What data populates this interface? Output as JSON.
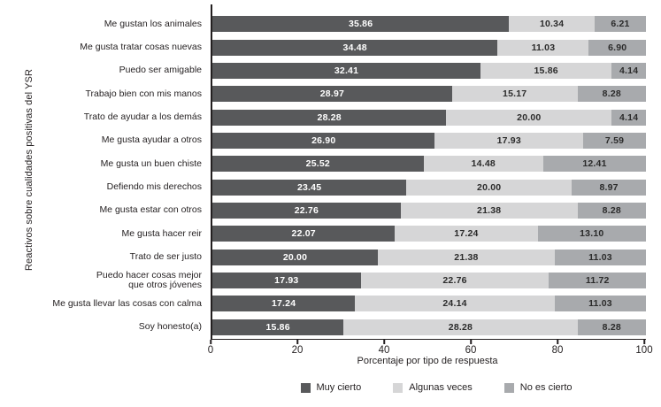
{
  "figure": {
    "y_axis_title": "Reactivos sobre cualidades positivas del YSR",
    "x_axis_title": "Porcentaje por tipo de respuesta"
  },
  "chart_data": {
    "type": "bar",
    "variant": "horizontal-stacked-normalized",
    "title": "",
    "ylabel": "Reactivos sobre cualidades positivas del YSR",
    "xlabel": "Porcentaje por tipo de respuesta",
    "xlim": [
      0,
      100
    ],
    "xticks": [
      0,
      20,
      40,
      60,
      80,
      100
    ],
    "grid": false,
    "legend_position": "bottom",
    "value_label_format": "2-decimals",
    "categories": [
      "Me gustan los animales",
      "Me gusta tratar cosas nuevas",
      "Puedo ser amigable",
      "Trabajo bien con mis manos",
      "Trato de ayudar a los demás",
      "Me gusta ayudar a otros",
      "Me gusta un buen chiste",
      "Defiendo mis derechos",
      "Me gusta estar con otros",
      "Me gusta hacer reir",
      "Trato de ser justo",
      "Puedo hacer cosas mejor\nque otros jóvenes",
      "Me gusta llevar las cosas con calma",
      "Soy honesto(a)"
    ],
    "series": [
      {
        "name": "Muy cierto",
        "color": "#58595B",
        "text_color": "#FFFFFF",
        "values": [
          35.86,
          34.48,
          32.41,
          28.97,
          28.28,
          26.9,
          25.52,
          23.45,
          22.76,
          22.07,
          20.0,
          17.93,
          17.24,
          15.86
        ]
      },
      {
        "name": "Algunas veces",
        "color": "#D6D6D7",
        "text_color": "#2B2B2B",
        "values": [
          10.34,
          11.03,
          15.86,
          15.17,
          20.0,
          17.93,
          14.48,
          20.0,
          21.38,
          17.24,
          21.38,
          22.76,
          24.14,
          28.28
        ]
      },
      {
        "name": "No es cierto",
        "color": "#A8AAAD",
        "text_color": "#2B2B2B",
        "values": [
          6.21,
          6.9,
          4.14,
          8.28,
          4.14,
          7.59,
          12.41,
          8.97,
          8.28,
          13.1,
          11.03,
          11.72,
          11.03,
          8.28
        ]
      }
    ]
  }
}
